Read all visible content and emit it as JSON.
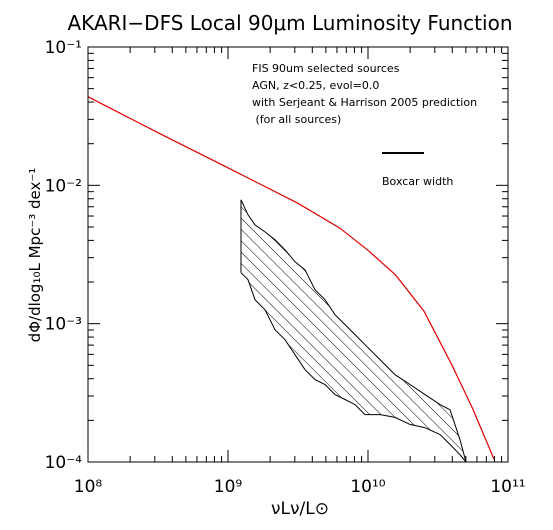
{
  "chart_data": {
    "type": "line",
    "title": "AKARI−DFS Local 90μm Luminosity Function",
    "xlabel": "νLν/L⊙",
    "ylabel": "dΦ/dlog₁₀L Mpc⁻³ dex⁻¹",
    "xscale": "log",
    "yscale": "log",
    "xlim": [
      100000000,
      100000000000
    ],
    "ylim": [
      0.0001,
      0.1
    ],
    "xticks": [
      {
        "value": 100000000,
        "label": "10⁸"
      },
      {
        "value": 1000000000,
        "label": "10⁹"
      },
      {
        "value": 10000000000,
        "label": "10¹⁰"
      },
      {
        "value": 100000000000,
        "label": "10¹¹"
      }
    ],
    "yticks": [
      {
        "value": 0.0001,
        "label": "10⁻⁴"
      },
      {
        "value": 0.001,
        "label": "10⁻³"
      },
      {
        "value": 0.01,
        "label": "10⁻²"
      },
      {
        "value": 0.1,
        "label": "10⁻¹"
      }
    ],
    "xminorticks": [
      200000000,
      300000000,
      400000000,
      500000000,
      600000000,
      700000000,
      800000000,
      900000000,
      2000000000,
      3000000000,
      4000000000,
      5000000000,
      6000000000,
      7000000000,
      8000000000,
      9000000000,
      20000000000,
      30000000000,
      40000000000,
      50000000000,
      60000000000,
      70000000000,
      80000000000,
      90000000000
    ],
    "yminorticks": [
      0.0002,
      0.0003,
      0.0004,
      0.0005,
      0.0006,
      0.0007,
      0.0008,
      0.0009,
      0.002,
      0.003,
      0.004,
      0.005,
      0.006,
      0.007,
      0.008,
      0.009,
      0.02,
      0.03,
      0.04,
      0.05,
      0.06,
      0.07,
      0.08,
      0.09
    ],
    "annotations": [
      "FIS 90um selected sources",
      "AGN, z<0.25, evol=0.0",
      "with Serjeant & Harrison 2005 prediction",
      " (for all sources)",
      "Boxcar width"
    ],
    "annotation_colors": [
      "#000000",
      "#000000",
      "#e00000",
      "#e00000",
      "#000000"
    ],
    "model": {
      "color": "#e00000",
      "x": [
        100000000,
        316000000,
        1000000000,
        3160000000,
        6310000000,
        10000000000,
        15800000000,
        25100000000,
        39800000000,
        56200000000,
        79400000000
      ],
      "values": [
        0.0437,
        0.024,
        0.0134,
        0.00741,
        0.0049,
        0.00339,
        0.00224,
        0.00123,
        0.000501,
        0.00024,
        0.000105
      ]
    },
    "band": {
      "color": "#000000",
      "x": [
        1238000000,
        1390000000,
        1559000000,
        1838000000,
        2166000000,
        2554000000,
        3010000000,
        3548000000,
        4183000000,
        4931000000,
        5813000000,
        6852000000,
        8077000000,
        9520000000,
        12180000000,
        15590000000,
        19950000000,
        25540000000,
        32680000000,
        38530000000,
        45420000000,
        50120000000
      ],
      "upper": [
        0.00786,
        0.00612,
        0.00518,
        0.00461,
        0.00404,
        0.00342,
        0.0028,
        0.00245,
        0.00176,
        0.00149,
        0.00116,
        0.000984,
        0.000833,
        0.000705,
        0.00055,
        0.000428,
        0.000363,
        0.000307,
        0.00026,
        0.000239,
        0.000145,
        0.0001
      ],
      "lower": [
        0.00233,
        0.00208,
        0.00149,
        0.00126,
        0.000904,
        0.000766,
        0.000597,
        0.000465,
        0.000394,
        0.000363,
        0.000307,
        0.000283,
        0.00026,
        0.00022,
        0.00022,
        0.00021,
        0.000187,
        0.000177,
        0.000158,
        0.000134,
        0.000113,
        0.0001
      ]
    }
  }
}
